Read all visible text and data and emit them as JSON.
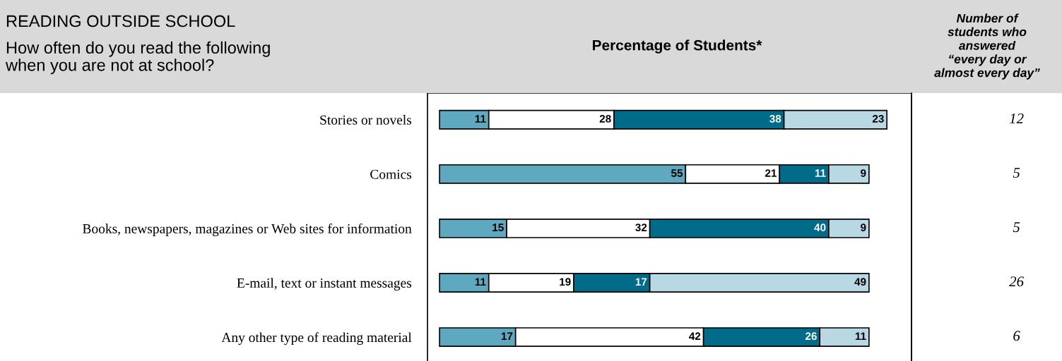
{
  "chart_data": {
    "type": "bar",
    "orientation": "horizontal",
    "stacked": true,
    "data_labels": true,
    "title": "READING OUTSIDE SCHOOL",
    "subtitle": "How often do you read the following\nwhen you are not at school?",
    "xlabel": "Percentage of Students*",
    "categories": [
      "Stories or novels",
      "Comics",
      "Books, newspapers, magazines or Web sites for information",
      "E-mail, text or instant messages",
      "Any other type of reading material"
    ],
    "series": [
      {
        "color": "#5fa9c0",
        "values": [
          11,
          55,
          15,
          11,
          17
        ]
      },
      {
        "color": "#ffffff",
        "values": [
          28,
          21,
          32,
          19,
          42
        ]
      },
      {
        "color": "#006c8a",
        "values": [
          38,
          11,
          40,
          17,
          26
        ]
      },
      {
        "color": "#b8d8e4",
        "values": [
          23,
          9,
          9,
          49,
          11
        ]
      }
    ],
    "annotations": [
      "Number of\nstudents who\nanswered\n“every day or\nalmost every day”",
      "12",
      "5",
      "5",
      "26",
      "6"
    ],
    "legend": false,
    "grid": false
  }
}
